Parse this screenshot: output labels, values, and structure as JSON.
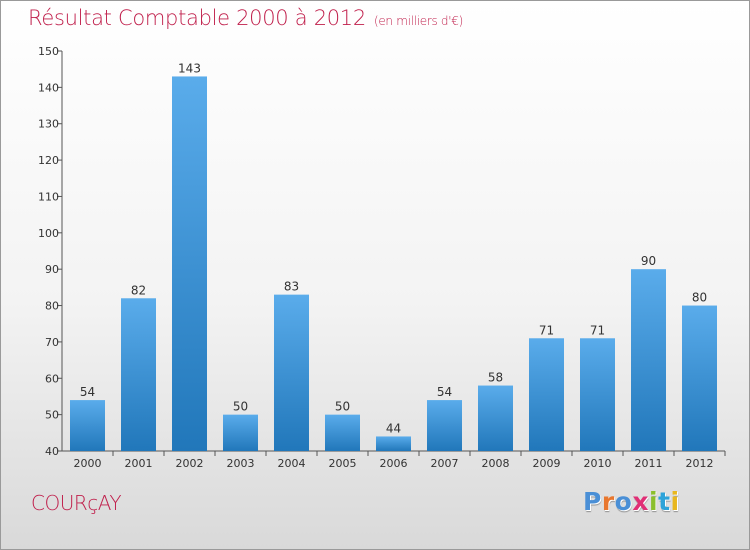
{
  "header": {
    "title": "Résultat Comptable 2000 à 2012",
    "subtitle": "(en milliers d'€)"
  },
  "footer": {
    "commune": "COURçAY",
    "brand": "Proxiti",
    "brand_colors": [
      "#4a8fd6",
      "#e8772e",
      "#4a8fd6",
      "#e02f76",
      "#8bbf2c",
      "#2da3d9",
      "#e8b71e"
    ]
  },
  "colors": {
    "accent": "#c0204c",
    "bar_light": "#5aaceb",
    "bar_dark": "#2177ba"
  },
  "chart_data": {
    "type": "bar",
    "categories": [
      "2000",
      "2001",
      "2002",
      "2003",
      "2004",
      "2005",
      "2006",
      "2007",
      "2008",
      "2009",
      "2010",
      "2011",
      "2012"
    ],
    "values": [
      54,
      82,
      143,
      50,
      83,
      50,
      44,
      54,
      58,
      71,
      71,
      90,
      80
    ],
    "title": "Résultat Comptable 2000 à 2012",
    "ylim": [
      40,
      150
    ],
    "yticks": [
      40,
      50,
      60,
      70,
      80,
      90,
      100,
      110,
      120,
      130,
      140,
      150
    ],
    "grid": false,
    "legend": "none"
  }
}
